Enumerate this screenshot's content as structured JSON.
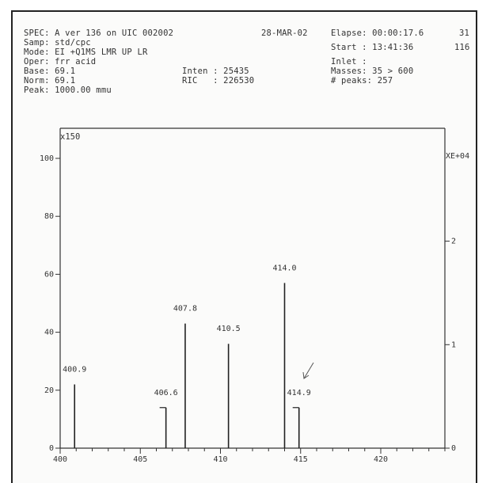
{
  "header": {
    "spec": "SPEC: A ver 136 on UIC 002002",
    "samp": "Samp: std/cpc",
    "mode": "Mode: EI +Q1MS LMR UP LR",
    "oper": "Oper: frr acid",
    "base": "Base: 69.1",
    "norm": "Norm: 69.1",
    "peak": "Peak: 1000.00 mmu",
    "date": "28-MAR-02",
    "elapse": "Elapse: 00:00:17.6",
    "elapse_num": "31",
    "start": "Start : 13:41:36",
    "start_num": "116",
    "inten": "Inten : 25435",
    "ric": "RIC   : 226530",
    "inlet": "Inlet :",
    "masses": "Masses: 35 > 600",
    "peaks": "# peaks: 257"
  },
  "chart_data": {
    "type": "bar",
    "magnification_label": "x150",
    "right_axis_unit": "XE+04",
    "xlim": [
      400,
      424
    ],
    "ylim": [
      0,
      100
    ],
    "right_ylim": [
      0,
      2.8
    ],
    "x_ticks": [
      "400",
      "405",
      "410",
      "415",
      "420"
    ],
    "y_ticks": [
      "0",
      "20",
      "40",
      "60",
      "80",
      "100"
    ],
    "right_ticks": [
      "0",
      "1",
      "2"
    ],
    "peaks": [
      {
        "mz": 400.9,
        "label": "400.9",
        "intensity": 22
      },
      {
        "mz": 406.6,
        "label": "406.6",
        "intensity": 14
      },
      {
        "mz": 407.8,
        "label": "407.8",
        "intensity": 43
      },
      {
        "mz": 410.5,
        "label": "410.5",
        "intensity": 36
      },
      {
        "mz": 414.0,
        "label": "414.0",
        "intensity": 57
      },
      {
        "mz": 414.9,
        "label": "414.9",
        "intensity": 14
      }
    ]
  }
}
